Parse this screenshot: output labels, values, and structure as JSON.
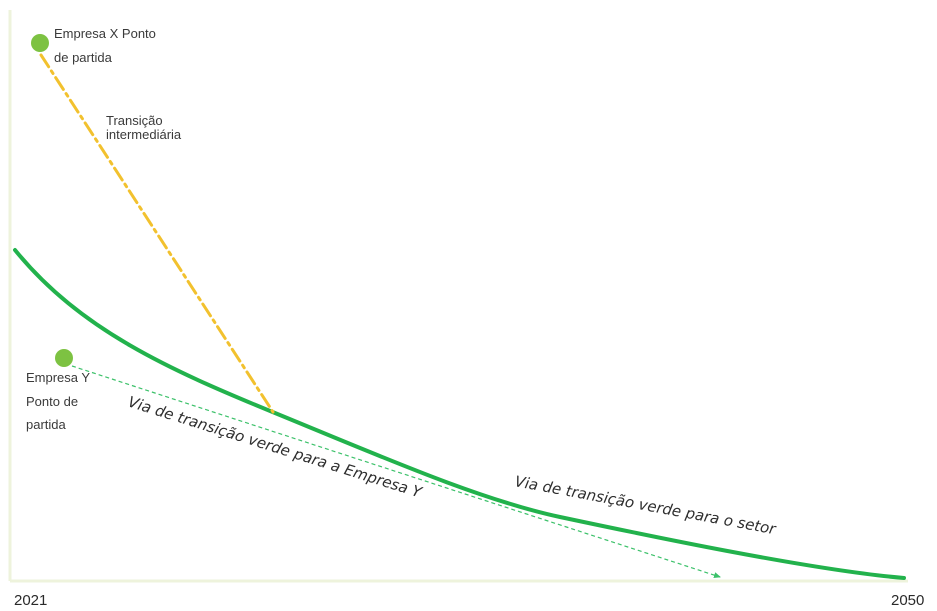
{
  "axis": {
    "start_label": "2021",
    "end_label": "2050"
  },
  "points": {
    "company_x": [
      "Empresa X Ponto",
      "de partida"
    ],
    "company_y": [
      "Empresa Y",
      "Ponto de",
      "partida"
    ]
  },
  "labels": {
    "intermediate": [
      "Transição",
      "intermediária"
    ],
    "company_y_path": "Via de transição verde para a Empresa Y",
    "sector_path": "Via de transição verde para o setor"
  },
  "colors": {
    "axis": "#eef3dc",
    "sector_path": "#22b24c",
    "intermediate_path": "#f2c12e",
    "company_y_path": "#3cc16a",
    "start_point": "#7dc242"
  }
}
